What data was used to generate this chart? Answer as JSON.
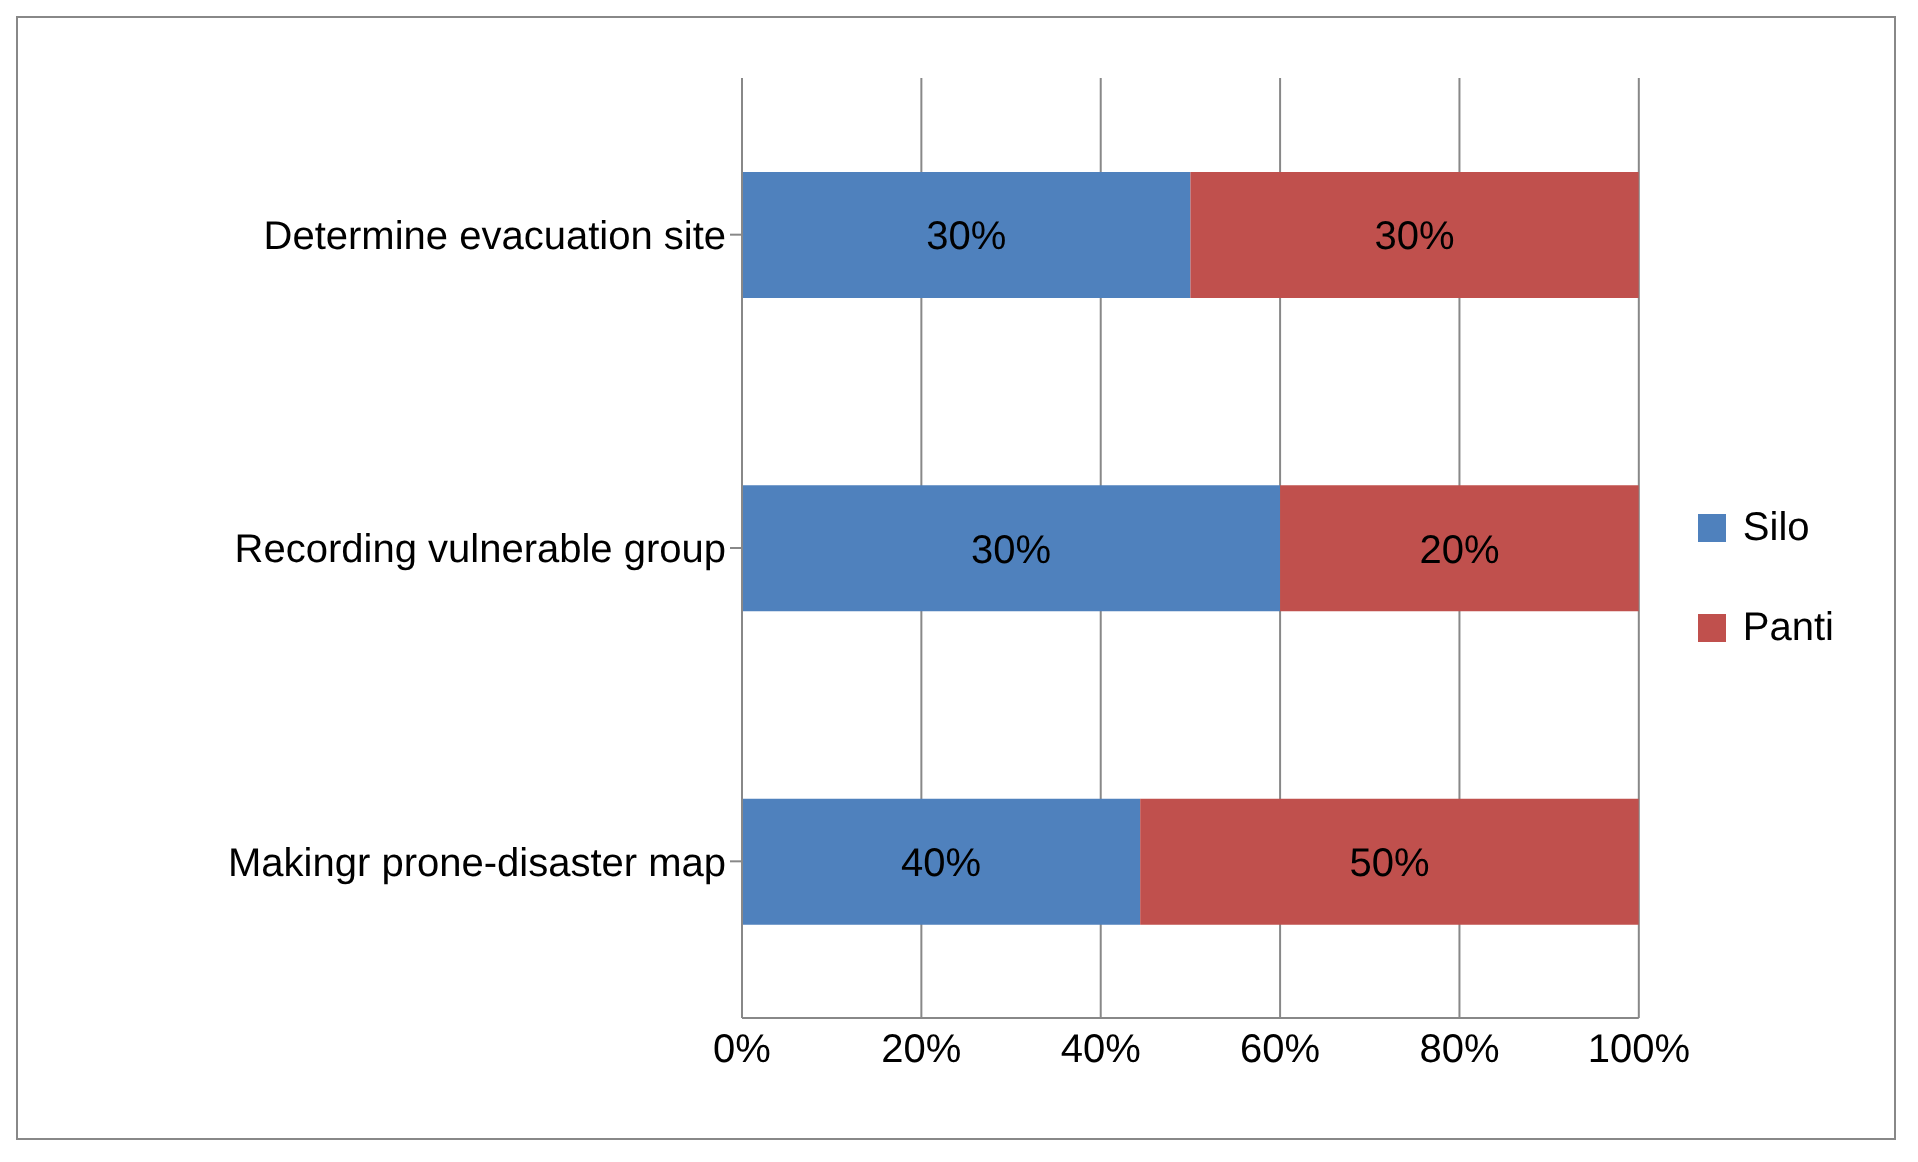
{
  "chart_data": {
    "type": "bar",
    "orientation": "horizontal",
    "stacked": true,
    "categories": [
      "Determine evacuation site",
      "Recording vulnerable group",
      "Makingr prone-disaster map"
    ],
    "series": [
      {
        "name": "Silo",
        "color": "#4f81bd",
        "values": [
          50,
          60,
          44.4
        ]
      },
      {
        "name": "Panti",
        "color": "#c0504d",
        "values": [
          50,
          40,
          55.6
        ]
      }
    ],
    "annotations": [
      "30%",
      "30%",
      "30%",
      "20%",
      "40%",
      "50%"
    ],
    "xlim": [
      0,
      100
    ],
    "xticks": [
      {
        "value": 0,
        "label": "0%"
      },
      {
        "value": 20,
        "label": "20%"
      },
      {
        "value": 40,
        "label": "40%"
      },
      {
        "value": 60,
        "label": "60%"
      },
      {
        "value": 80,
        "label": "80%"
      },
      {
        "value": 100,
        "label": "100%"
      }
    ],
    "grid": "x",
    "legend": "right"
  }
}
